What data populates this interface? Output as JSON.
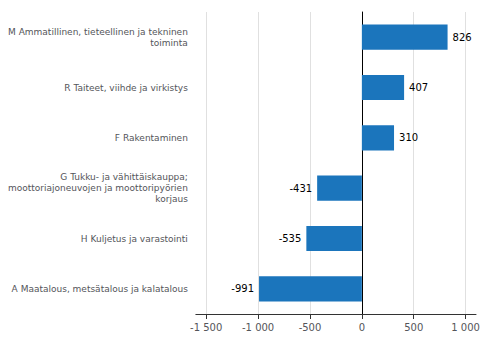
{
  "chart_data": {
    "type": "bar",
    "orientation": "horizontal",
    "categories": [
      "A Maatalous, metsätalous ja kalatalous",
      "H Kuljetus ja varastointi",
      "G Tukku- ja vähittäiskauppa;\nmoottoriajoneuvojen ja moottoripyörien\nkorjaus",
      "F Rakentaminen",
      "R Taiteet, viihde ja virkistys",
      "M Ammatillinen, tieteellinen ja tekninen\ntoiminta"
    ],
    "values": [
      -991,
      -535,
      -431,
      310,
      407,
      826
    ],
    "color": "#1b75bc",
    "xlim": [
      -1600,
      1100
    ],
    "xticks": [
      {
        "value": -1500,
        "label": "-1 500"
      },
      {
        "value": -1000,
        "label": "-1 000"
      },
      -500,
      0,
      500,
      {
        "value": 1000,
        "label": "1 000"
      }
    ],
    "grid": true,
    "data_labels": true
  }
}
